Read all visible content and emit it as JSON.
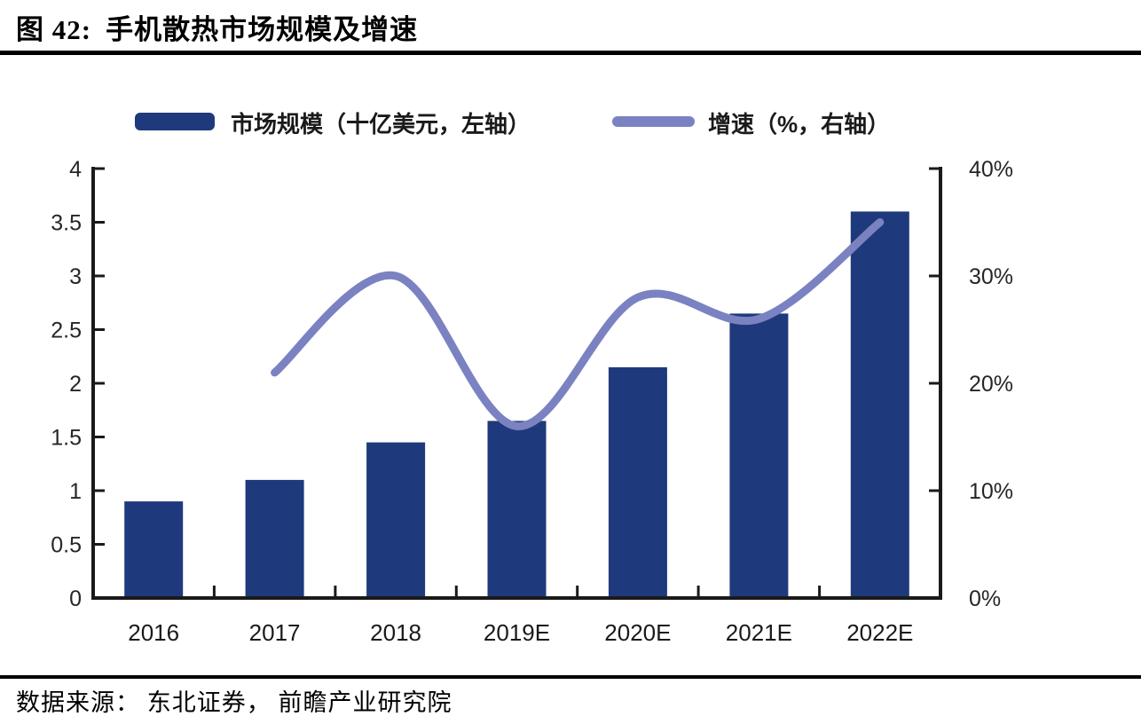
{
  "header": {
    "figure_label": "图 42:",
    "title": "手机散热市场规模及增速"
  },
  "footer": {
    "source": "数据来源： 东北证券， 前瞻产业研究院"
  },
  "chart_data": {
    "type": "bar+line",
    "title": "手机散热市场规模及增速",
    "categories": [
      "2016",
      "2017",
      "2018",
      "2019E",
      "2020E",
      "2021E",
      "2022E"
    ],
    "series": [
      {
        "name": "市场规模（十亿美元，左轴）",
        "type": "bar",
        "axis": "left",
        "values": [
          0.9,
          1.1,
          1.45,
          1.65,
          2.15,
          2.65,
          3.6
        ]
      },
      {
        "name": "增速（%，右轴）",
        "type": "line",
        "axis": "right",
        "x": [
          "2017",
          "2018",
          "2019E",
          "2020E",
          "2021E",
          "2022E"
        ],
        "values": [
          21,
          30,
          16,
          28,
          26,
          35
        ]
      }
    ],
    "left_axis": {
      "min": 0,
      "max": 4,
      "step": 0.5,
      "tick_labels": [
        "0",
        "0.5",
        "1",
        "1.5",
        "2",
        "2.5",
        "3",
        "3.5",
        "4"
      ]
    },
    "right_axis": {
      "min": 0,
      "max": 40,
      "step": 10,
      "tick_labels": [
        "0%",
        "10%",
        "20%",
        "30%",
        "40%"
      ]
    },
    "legend_position": "top",
    "grid": false,
    "colors": {
      "bar": "#1f3a7c",
      "line": "#7a82c1",
      "axis": "#1a1a1a",
      "tick_text": "#262626"
    }
  }
}
